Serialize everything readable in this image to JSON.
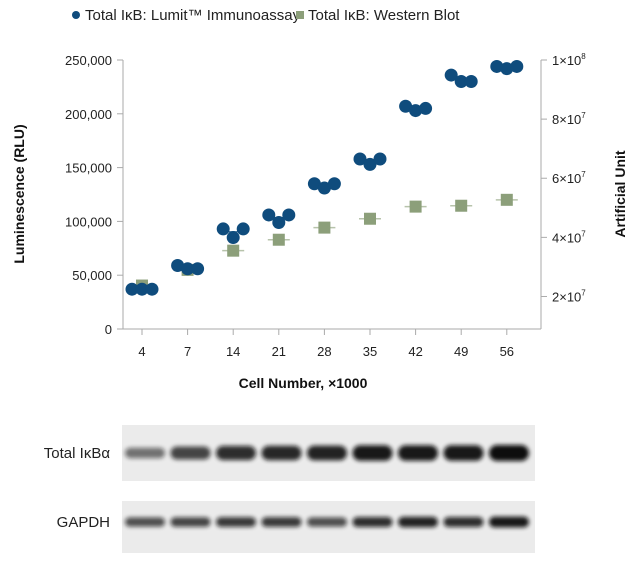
{
  "chart_data": {
    "type": "scatter",
    "categories": [
      "4",
      "7",
      "14",
      "21",
      "28",
      "35",
      "42",
      "49",
      "56"
    ],
    "xlabel": "Cell Number, ×1000",
    "ylabel": "Luminescence (RLU)",
    "y2label": "Artificial Unit",
    "ylim": [
      0,
      250000
    ],
    "y2lim": [
      9000000,
      100000000
    ],
    "yticks": [
      {
        "v": 0,
        "t": "0"
      },
      {
        "v": 50000,
        "t": "50,000"
      },
      {
        "v": 100000,
        "t": "100,000"
      },
      {
        "v": 150000,
        "t": "150,000"
      },
      {
        "v": 200000,
        "t": "200,000"
      },
      {
        "v": 250000,
        "t": "250,000"
      }
    ],
    "y2ticks": [
      {
        "v": 20000000,
        "b": "2×10",
        "e": "7"
      },
      {
        "v": 40000000,
        "b": "4×10",
        "e": "7"
      },
      {
        "v": 60000000,
        "b": "6×10",
        "e": "7"
      },
      {
        "v": 80000000,
        "b": "8×10",
        "e": "7"
      },
      {
        "v": 100000000,
        "b": "1×10",
        "e": "8"
      }
    ],
    "legend_position": "top",
    "series": [
      {
        "name": "Total IκB: Lumit™ Immunoassay",
        "axis": "left",
        "marker": "circle",
        "color": "#0f4c7d",
        "replicates": [
          [
            37000,
            37000,
            37000
          ],
          [
            59000,
            56000,
            56000
          ],
          [
            93000,
            85000,
            93000
          ],
          [
            106000,
            99000,
            106000
          ],
          [
            135000,
            131000,
            135000
          ],
          [
            158000,
            153000,
            158000
          ],
          [
            207000,
            203000,
            205000
          ],
          [
            236000,
            230000,
            230000
          ],
          [
            244000,
            242000,
            244000
          ]
        ]
      },
      {
        "name": "Total IκB: Western Blot",
        "axis": "right",
        "marker": "square",
        "color": "#8c9f7a",
        "values": [
          23700000,
          29000000,
          35500000,
          39200000,
          43300000,
          46300000,
          50400000,
          50700000,
          52700000
        ]
      }
    ]
  },
  "blots": {
    "rows": [
      {
        "label": "Total IκBα",
        "intensity": [
          0.55,
          0.75,
          0.85,
          0.88,
          0.9,
          0.95,
          0.95,
          0.95,
          1.0
        ]
      },
      {
        "label": "GAPDH",
        "intensity": [
          0.7,
          0.75,
          0.8,
          0.8,
          0.7,
          0.85,
          0.9,
          0.85,
          0.95
        ]
      }
    ]
  }
}
